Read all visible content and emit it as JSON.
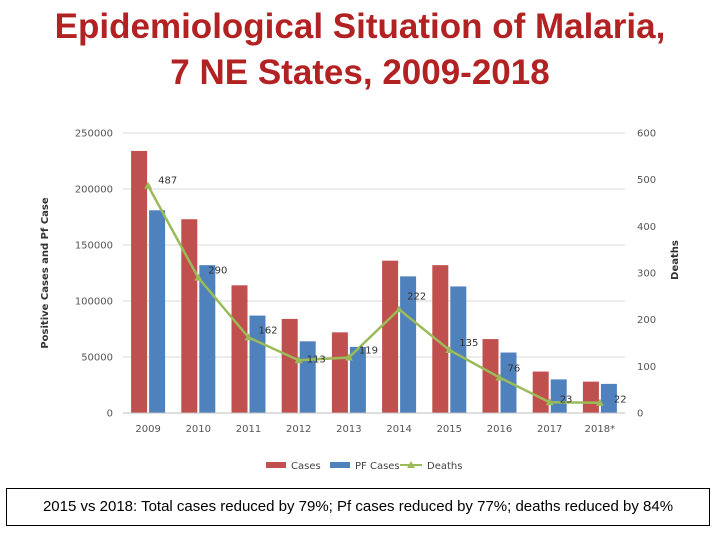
{
  "title_line1": "Epidemiological Situation of Malaria,",
  "title_line2": "7 NE States, 2009-2018",
  "note": "2015 vs 2018: Total cases reduced by 79%; Pf cases reduced by 77%; deaths reduced by 84%",
  "colors": {
    "cases": "#c0504d",
    "pf": "#4f81bd",
    "deaths": "#9bbb59",
    "title": "#b22222"
  },
  "chart_data": {
    "type": "bar",
    "categories": [
      "2009",
      "2010",
      "2011",
      "2012",
      "2013",
      "2014",
      "2015",
      "2016",
      "2017",
      "2018*"
    ],
    "series": [
      {
        "name": "Cases",
        "axis": "left",
        "values": [
          234000,
          173000,
          114000,
          84000,
          72000,
          136000,
          132000,
          66000,
          37000,
          28000
        ]
      },
      {
        "name": "PF Cases",
        "axis": "left",
        "values": [
          181000,
          132000,
          87000,
          64000,
          59000,
          122000,
          113000,
          54000,
          30000,
          26000
        ]
      },
      {
        "name": "Deaths",
        "type": "line",
        "axis": "right",
        "values": [
          487,
          290,
          162,
          113,
          119,
          222,
          135,
          76,
          23,
          22
        ]
      }
    ],
    "ylabel": "Positive Cases and Pf Case",
    "ylabel_right": "Deaths",
    "ylim": [
      0,
      250000
    ],
    "ylim_right": [
      0,
      600
    ],
    "yticks": [
      "0",
      "50000",
      "100000",
      "150000",
      "200000",
      "250000"
    ],
    "yticks_right": [
      "0",
      "100",
      "200",
      "300",
      "400",
      "500",
      "600"
    ],
    "legend": "bottom"
  }
}
